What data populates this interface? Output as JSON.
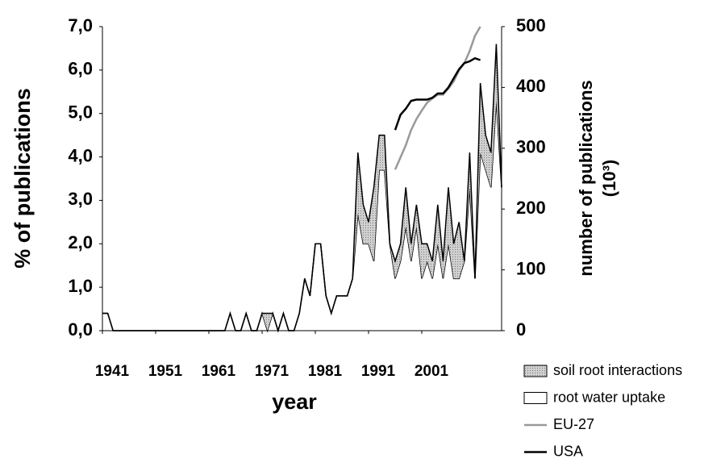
{
  "chart_data": {
    "type": "stacked_area_line",
    "xlabel": "year",
    "ylabel": "% of publications",
    "y2label": [
      "number of publications",
      "(10³)"
    ],
    "x": [
      1941,
      1942,
      1943,
      1944,
      1945,
      1946,
      1947,
      1948,
      1949,
      1950,
      1951,
      1952,
      1953,
      1954,
      1955,
      1956,
      1957,
      1958,
      1959,
      1960,
      1961,
      1962,
      1963,
      1964,
      1965,
      1966,
      1967,
      1968,
      1969,
      1970,
      1971,
      1972,
      1973,
      1974,
      1975,
      1976,
      1977,
      1978,
      1979,
      1980,
      1981,
      1982,
      1983,
      1984,
      1985,
      1986,
      1987,
      1988,
      1989,
      1990,
      1991,
      1992,
      1993,
      1994,
      1995,
      1996,
      1997,
      1998,
      1999,
      2000,
      2001,
      2002,
      2003,
      2004,
      2005,
      2006,
      2007,
      2008,
      2009,
      2010,
      2011,
      2012,
      2013,
      2014,
      2015,
      2016
    ],
    "xlim": [
      1941,
      2016
    ],
    "xticks": [
      1941,
      1951,
      1961,
      1971,
      1981,
      1991,
      2001
    ],
    "ylim": [
      0,
      7
    ],
    "yticks": [
      {
        "value": 0,
        "label": "0,0"
      },
      {
        "value": 1,
        "label": "1,0"
      },
      {
        "value": 2,
        "label": "2,0"
      },
      {
        "value": 3,
        "label": "3,0"
      },
      {
        "value": 4,
        "label": "4,0"
      },
      {
        "value": 5,
        "label": "5,0"
      },
      {
        "value": 6,
        "label": "6,0"
      },
      {
        "value": 7,
        "label": "7,0"
      }
    ],
    "y2lim": [
      0,
      500
    ],
    "y2ticks": [
      0,
      100,
      200,
      300,
      400,
      500
    ],
    "series": [
      {
        "name": "root water uptake",
        "kind": "area",
        "color": "#ffffff",
        "values": [
          0.4,
          0.4,
          0,
          0,
          0,
          0,
          0,
          0,
          0,
          0,
          0,
          0,
          0,
          0,
          0,
          0,
          0,
          0,
          0,
          0,
          0,
          0,
          0,
          0,
          0.4,
          0,
          0,
          0.4,
          0,
          0,
          0.4,
          0,
          0.4,
          0,
          0.4,
          0,
          0,
          0.4,
          1.2,
          0.8,
          2.0,
          2.0,
          0.8,
          0.4,
          0.8,
          0.8,
          0.8,
          1.2,
          2.7,
          2.0,
          2.0,
          1.6,
          3.7,
          3.7,
          2.0,
          1.2,
          1.6,
          2.4,
          1.6,
          2.4,
          1.2,
          1.6,
          1.2,
          2.0,
          1.2,
          2.0,
          1.2,
          1.2,
          1.6,
          3.3,
          1.2,
          4.1,
          3.7,
          3.3,
          5.3,
          3.3
        ]
      },
      {
        "name": "soil root interactions",
        "kind": "area",
        "color": "#c8c8c8",
        "values": [
          0,
          0,
          0,
          0,
          0,
          0,
          0,
          0,
          0,
          0,
          0,
          0,
          0,
          0,
          0,
          0,
          0,
          0,
          0,
          0,
          0,
          0,
          0,
          0,
          0,
          0,
          0,
          0,
          0,
          0,
          0,
          0.4,
          0,
          0,
          0,
          0,
          0,
          0,
          0,
          0,
          0,
          0,
          0,
          0,
          0,
          0,
          0,
          0,
          1.4,
          0.9,
          0.5,
          1.7,
          0.8,
          0.8,
          0,
          0.4,
          0.4,
          0.9,
          0.4,
          0.5,
          0.8,
          0.4,
          0.4,
          0.9,
          0.4,
          1.3,
          0.8,
          1.3,
          0,
          0.8,
          0,
          1.6,
          0.8,
          0.8,
          1.3,
          0
        ]
      },
      {
        "name": "EU-27",
        "kind": "line",
        "axis": "y2",
        "color": "#999999",
        "values": [
          null,
          null,
          null,
          null,
          null,
          null,
          null,
          null,
          null,
          null,
          null,
          null,
          null,
          null,
          null,
          null,
          null,
          null,
          null,
          null,
          null,
          null,
          null,
          null,
          null,
          null,
          null,
          null,
          null,
          null,
          null,
          null,
          null,
          null,
          null,
          null,
          null,
          null,
          null,
          null,
          null,
          null,
          null,
          null,
          null,
          null,
          null,
          null,
          null,
          null,
          null,
          null,
          null,
          null,
          null,
          265,
          285,
          305,
          330,
          348,
          362,
          375,
          382,
          388,
          388,
          398,
          410,
          428,
          440,
          460,
          485,
          500,
          null,
          null,
          null,
          null
        ]
      },
      {
        "name": "USA",
        "kind": "line",
        "axis": "y2",
        "color": "#000000",
        "values": [
          null,
          null,
          null,
          null,
          null,
          null,
          null,
          null,
          null,
          null,
          null,
          null,
          null,
          null,
          null,
          null,
          null,
          null,
          null,
          null,
          null,
          null,
          null,
          null,
          null,
          null,
          null,
          null,
          null,
          null,
          null,
          null,
          null,
          null,
          null,
          null,
          null,
          null,
          null,
          null,
          null,
          null,
          null,
          null,
          null,
          null,
          null,
          null,
          null,
          null,
          null,
          null,
          null,
          null,
          null,
          330,
          355,
          365,
          378,
          380,
          380,
          380,
          383,
          390,
          390,
          400,
          415,
          430,
          440,
          443,
          448,
          445,
          null,
          null,
          null,
          null
        ]
      }
    ],
    "legend": "bottom-right"
  }
}
